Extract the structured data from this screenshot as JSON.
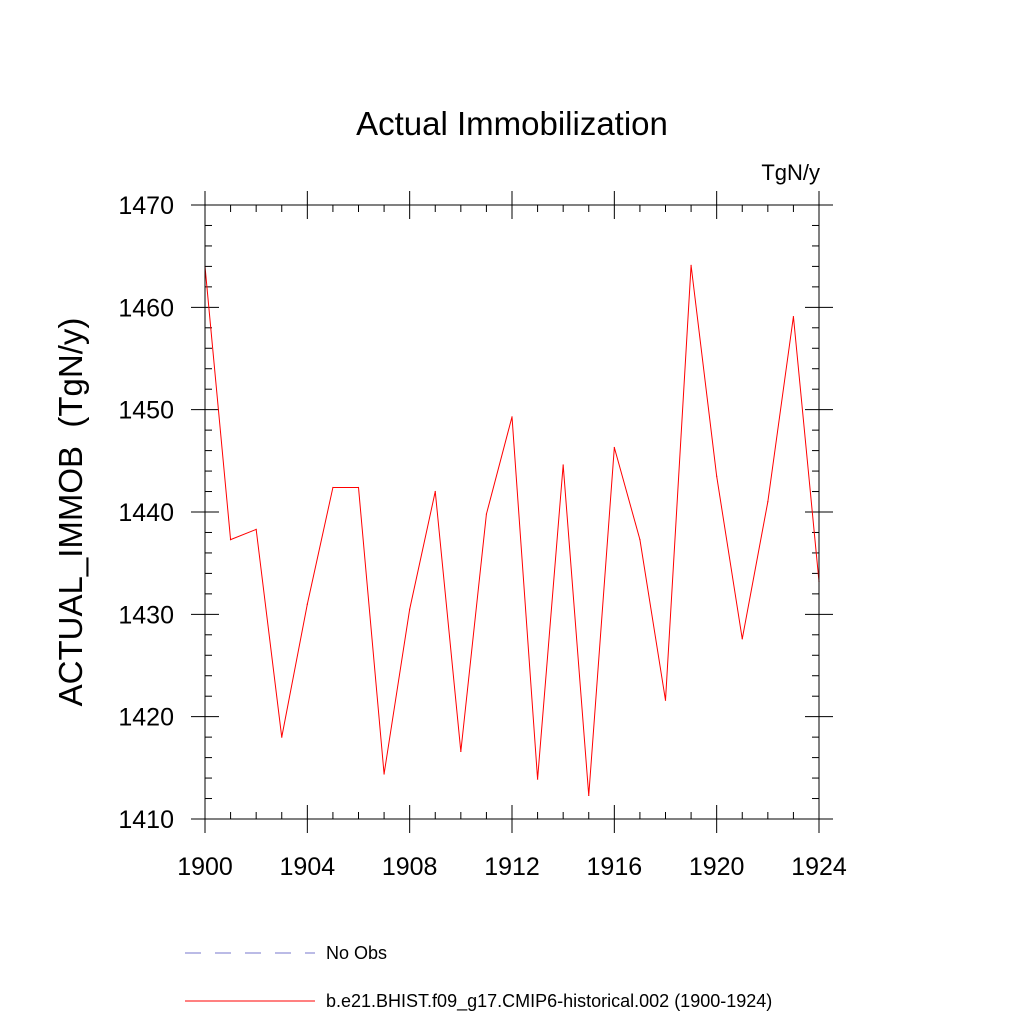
{
  "chart_data": {
    "type": "line",
    "title": "Actual Immobilization",
    "units_label": "TgN/y",
    "ylabel": "ACTUAL_IMMOB  (TgN/y)",
    "xlabel": "",
    "xlim": [
      1900,
      1924
    ],
    "ylim": [
      1410,
      1470
    ],
    "x_ticks": [
      1900,
      1904,
      1908,
      1912,
      1916,
      1920,
      1924
    ],
    "x_tick_labels": [
      "1900",
      "1904",
      "1908",
      "1912",
      "1916",
      "1920",
      "1924"
    ],
    "y_ticks": [
      1410,
      1420,
      1430,
      1440,
      1450,
      1460,
      1470
    ],
    "y_tick_labels": [
      "1410",
      "1420",
      "1430",
      "1440",
      "1450",
      "1460",
      "1470"
    ],
    "x_minor_step": 1,
    "y_minor_step": 2,
    "grid": false,
    "legend_position": "bottom",
    "series": [
      {
        "name": "b.e21.BHIST.f09_g17.CMIP6-historical.002 (1900-1924)",
        "color": "#ff0000",
        "dash": "solid",
        "x": [
          1900,
          1901,
          1902,
          1903,
          1904,
          1905,
          1906,
          1907,
          1908,
          1909,
          1910,
          1911,
          1912,
          1913,
          1914,
          1915,
          1916,
          1917,
          1918,
          1919,
          1920,
          1921,
          1922,
          1923,
          1924
        ],
        "values": [
          1464,
          1437.3,
          1438.3,
          1418,
          1431,
          1442.4,
          1442.4,
          1414.4,
          1430.5,
          1442,
          1416.6,
          1439.8,
          1449.3,
          1413.9,
          1444.6,
          1412.3,
          1446.3,
          1437.3,
          1421.6,
          1464.1,
          1443.5,
          1427.6,
          1441,
          1459.1,
          1433.2
        ]
      }
    ],
    "legend": [
      {
        "label": "No Obs",
        "color": "#7777cc",
        "dash": "dashed"
      },
      {
        "label": "b.e21.BHIST.f09_g17.CMIP6-historical.002 (1900-1924)",
        "color": "#ff0000",
        "dash": "solid"
      }
    ]
  }
}
